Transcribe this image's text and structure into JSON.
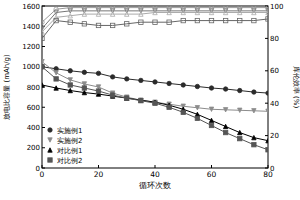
{
  "chart_data": {
    "type": "line",
    "x_label": "循环次数",
    "y_label": "放电比容量 (mAh/g)",
    "y2_label": "库伦效率 (%)",
    "x": [
      0,
      5,
      10,
      15,
      20,
      25,
      30,
      35,
      40,
      45,
      50,
      55,
      60,
      65,
      70,
      75,
      80
    ],
    "xlim": [
      0,
      80
    ],
    "xticks": [
      0,
      20,
      40,
      60,
      80
    ],
    "ylim": [
      0,
      1600
    ],
    "yticks": [
      0,
      200,
      400,
      600,
      800,
      1000,
      1200,
      1400,
      1600
    ],
    "y2lim": [
      0,
      100
    ],
    "y2ticks": [
      0,
      20,
      40,
      60,
      80,
      100
    ],
    "legend": "lower left",
    "series": [
      {
        "name": "实施例1",
        "color": "#2b2b2b",
        "marker": "circle",
        "values": [
          1000,
          980,
          960,
          945,
          935,
          900,
          880,
          865,
          850,
          835,
          820,
          805,
          790,
          780,
          765,
          750,
          740
        ]
      },
      {
        "name": "实施例2",
        "color": "#8c8c8c",
        "marker": "triangle-down",
        "values": [
          1050,
          940,
          870,
          830,
          800,
          740,
          700,
          670,
          650,
          630,
          610,
          595,
          580,
          575,
          570,
          565,
          560
        ]
      },
      {
        "name": "对比例1",
        "color": "#000000",
        "marker": "triangle-up",
        "values": [
          820,
          790,
          765,
          745,
          730,
          710,
          690,
          670,
          650,
          620,
          580,
          530,
          470,
          410,
          350,
          300,
          270
        ]
      },
      {
        "name": "对比例2",
        "color": "#555555",
        "marker": "square",
        "values": [
          1000,
          880,
          820,
          790,
          760,
          720,
          690,
          665,
          640,
          600,
          550,
          490,
          420,
          350,
          290,
          230,
          180
        ]
      },
      {
        "axis": "y2",
        "color": "#999999",
        "marker": "open-circle",
        "values": [
          90,
          98,
          99,
          99,
          99,
          99,
          99,
          99,
          99,
          99,
          99,
          99,
          99,
          99,
          99,
          99,
          99
        ]
      },
      {
        "axis": "y2",
        "color": "#777777",
        "marker": "open-triangle-down",
        "values": [
          86,
          96,
          97,
          97,
          97,
          97,
          97,
          97,
          97,
          97,
          97,
          97,
          97,
          97,
          97,
          97,
          97
        ]
      },
      {
        "axis": "y2",
        "color": "#aaaaaa",
        "marker": "open-triangle-up",
        "values": [
          84,
          93,
          94,
          95,
          95,
          95,
          95,
          95,
          96,
          96,
          96,
          96,
          96,
          96,
          96,
          96,
          96
        ]
      },
      {
        "axis": "y2",
        "color": "#666666",
        "marker": "open-square",
        "values": [
          80,
          91,
          90,
          89,
          88,
          88,
          89,
          90,
          90,
          90,
          91,
          91,
          91,
          91,
          91,
          91,
          92
        ]
      }
    ]
  }
}
